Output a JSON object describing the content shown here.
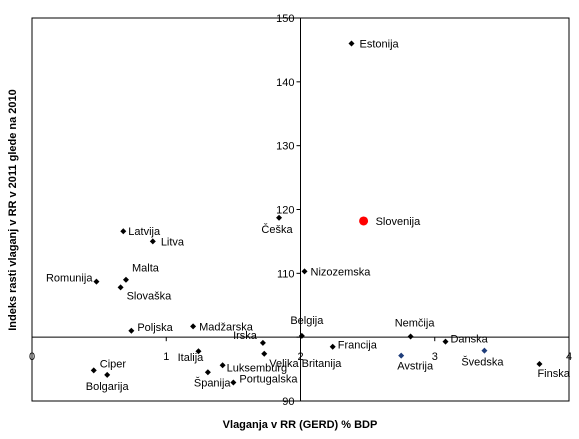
{
  "chart_data": {
    "type": "scatter",
    "title": "",
    "xlabel": "Vlaganja v RR (GERD) % BDP",
    "ylabel": "Indeks rasti vlaganj v RR v 2011 glede na 2010",
    "xlim": [
      0,
      4
    ],
    "ylim": [
      90,
      150
    ],
    "x_cross": 2,
    "y_cross": 100,
    "xticks": [
      "0",
      "1",
      "2",
      "3",
      "4"
    ],
    "yticks": [
      "90",
      "110",
      "120",
      "130",
      "140",
      "150"
    ],
    "grid": false,
    "legend": "none",
    "colors": {
      "default": "#000000",
      "highlight": "#ff0000",
      "blue": "#1f3d7a"
    },
    "points": [
      {
        "label": "Estonija",
        "x": 2.38,
        "y": 146.0
      },
      {
        "label": "Slovenija",
        "x": 2.47,
        "y": 118.2,
        "highlight": true
      },
      {
        "label": "Češka",
        "x": 1.84,
        "y": 118.7
      },
      {
        "label": "Latvija",
        "x": 0.68,
        "y": 116.6
      },
      {
        "label": "Litva",
        "x": 0.9,
        "y": 115.0
      },
      {
        "label": "Nizozemska",
        "x": 2.03,
        "y": 110.3
      },
      {
        "label": "Malta",
        "x": 0.7,
        "y": 109.0
      },
      {
        "label": "Romunija",
        "x": 0.48,
        "y": 108.7
      },
      {
        "label": "Slovaška",
        "x": 0.66,
        "y": 107.8
      },
      {
        "label": "Poljska",
        "x": 0.74,
        "y": 101.0
      },
      {
        "label": "Madžarska",
        "x": 1.2,
        "y": 101.7
      },
      {
        "label": "Belgija",
        "x": 2.01,
        "y": 100.2
      },
      {
        "label": "Nemčija",
        "x": 2.82,
        "y": 100.1
      },
      {
        "label": "Francija",
        "x": 2.24,
        "y": 98.5
      },
      {
        "label": "Danska",
        "x": 3.08,
        "y": 99.3
      },
      {
        "label": "Irska",
        "x": 1.72,
        "y": 99.1
      },
      {
        "label": "Italija",
        "x": 1.24,
        "y": 97.8
      },
      {
        "label": "Velika Britanija",
        "x": 1.73,
        "y": 97.4
      },
      {
        "label": "Avstrija",
        "x": 2.75,
        "y": 97.1,
        "color": "blue"
      },
      {
        "label": "Švedska",
        "x": 3.37,
        "y": 97.9,
        "color": "blue"
      },
      {
        "label": "Luksemburg",
        "x": 1.42,
        "y": 95.6
      },
      {
        "label": "Ciper",
        "x": 0.46,
        "y": 94.8
      },
      {
        "label": "Bolgarija",
        "x": 0.56,
        "y": 94.1
      },
      {
        "label": "Španija",
        "x": 1.31,
        "y": 94.5
      },
      {
        "label": "Portugalska",
        "x": 1.5,
        "y": 92.9
      },
      {
        "label": "Finska",
        "x": 3.78,
        "y": 95.8
      }
    ]
  }
}
